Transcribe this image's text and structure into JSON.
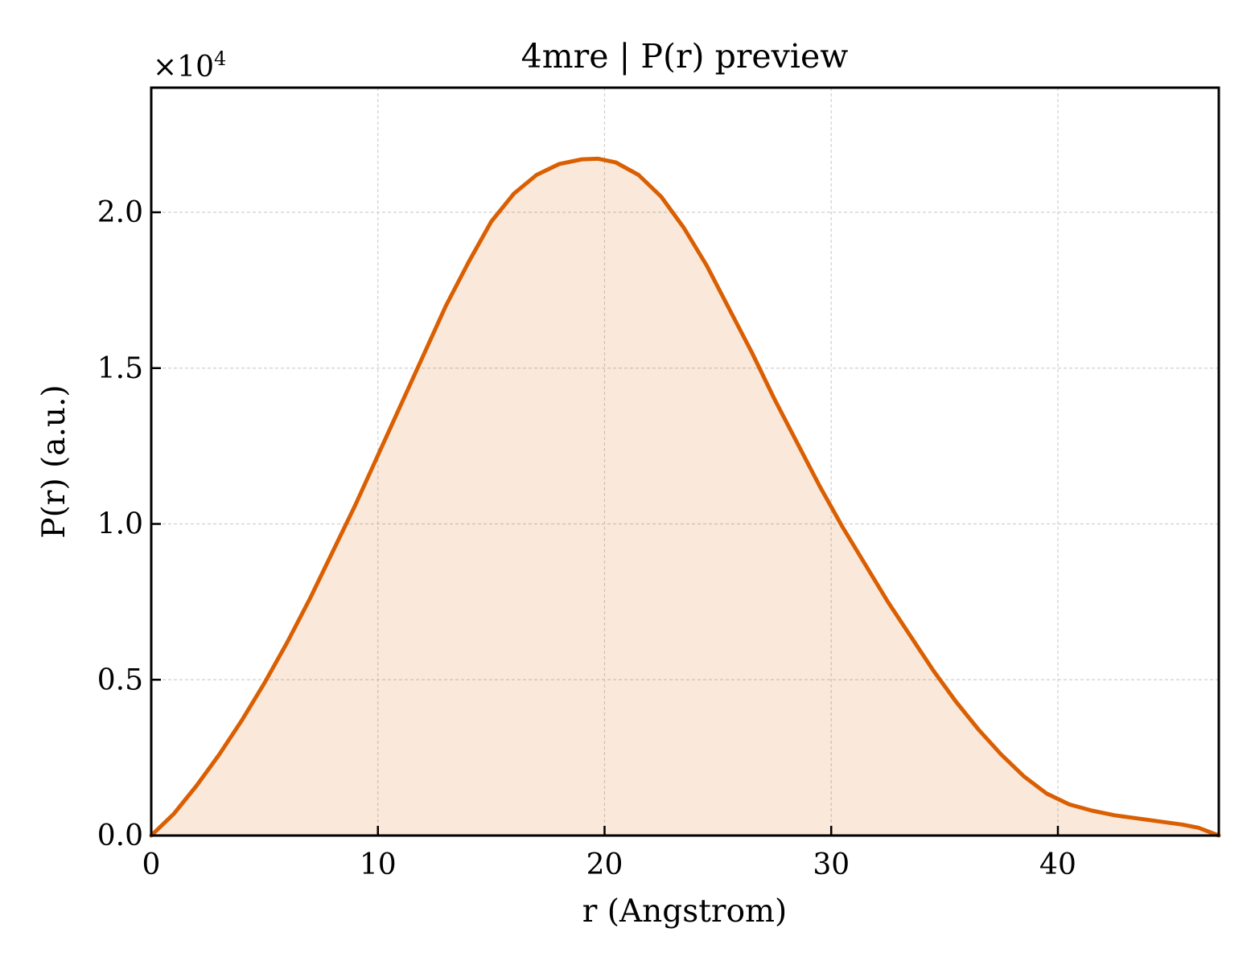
{
  "chart_data": {
    "type": "area",
    "title": "4mre | P(r) preview",
    "xlabel": "r (Angstrom)",
    "ylabel": "P(r) (a.u.)",
    "y_multiplier_label": "×10",
    "y_multiplier_exponent": "4",
    "xlim": [
      0,
      47.1
    ],
    "ylim": [
      0,
      2.4
    ],
    "grid": true,
    "legend": "none",
    "x_ticks": [
      {
        "value": 0,
        "label": "0"
      },
      {
        "value": 10,
        "label": "10"
      },
      {
        "value": 20,
        "label": "20"
      },
      {
        "value": 30,
        "label": "30"
      },
      {
        "value": 40,
        "label": "40"
      }
    ],
    "y_ticks": [
      {
        "value": 0.0,
        "label": "0.0"
      },
      {
        "value": 0.5,
        "label": "0.5"
      },
      {
        "value": 1.0,
        "label": "1.0"
      },
      {
        "value": 1.5,
        "label": "1.5"
      },
      {
        "value": 2.0,
        "label": "2.0"
      }
    ],
    "series": [
      {
        "color": "#d95f02",
        "fill_color": "#d95f02",
        "fill_opacity": 0.14,
        "x": [
          0,
          1,
          2,
          3,
          4,
          5,
          6,
          7,
          8,
          9,
          10,
          11,
          12,
          13,
          14,
          15,
          16,
          17,
          18,
          19,
          19.7,
          20.5,
          21.5,
          22.5,
          23.5,
          24.5,
          25.5,
          26.5,
          27.5,
          28.5,
          29.5,
          30.5,
          31.5,
          32.5,
          33.5,
          34.5,
          35.5,
          36.5,
          37.5,
          38.5,
          39.5,
          40.5,
          41.5,
          42.5,
          43.5,
          44.5,
          45.5,
          46.2,
          47.1
        ],
        "y": [
          0.0,
          0.07,
          0.16,
          0.26,
          0.37,
          0.49,
          0.62,
          0.76,
          0.91,
          1.06,
          1.22,
          1.38,
          1.54,
          1.7,
          1.84,
          1.97,
          2.06,
          2.12,
          2.155,
          2.17,
          2.172,
          2.16,
          2.12,
          2.05,
          1.95,
          1.83,
          1.69,
          1.55,
          1.4,
          1.26,
          1.12,
          0.99,
          0.87,
          0.75,
          0.64,
          0.53,
          0.43,
          0.34,
          0.26,
          0.19,
          0.135,
          0.1,
          0.08,
          0.065,
          0.055,
          0.045,
          0.035,
          0.025,
          0.0
        ]
      }
    ]
  }
}
